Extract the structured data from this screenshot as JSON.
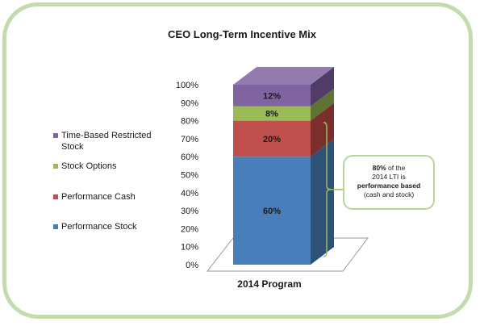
{
  "chart_data": {
    "type": "bar",
    "stacked": true,
    "three_d": true,
    "title": "CEO Long-Term Incentive Mix",
    "categories": [
      "2014 Program"
    ],
    "yticks": [
      "0%",
      "10%",
      "20%",
      "30%",
      "40%",
      "50%",
      "60%",
      "70%",
      "80%",
      "90%",
      "100%"
    ],
    "ylim": [
      0,
      100
    ],
    "series": [
      {
        "name": "Performance Stock",
        "values": [
          60
        ],
        "label": "60%",
        "color": "#4a7ebb",
        "side": "#2e5277"
      },
      {
        "name": "Performance Cash",
        "values": [
          20
        ],
        "label": "20%",
        "color": "#c0504d",
        "side": "#7a2f2c"
      },
      {
        "name": "Stock Options",
        "values": [
          8
        ],
        "label": "8%",
        "color": "#9bbb59",
        "side": "#5f7433"
      },
      {
        "name": "Time-Based Restricted Stock",
        "values": [
          12
        ],
        "label": "12%",
        "color": "#8064a2",
        "side": "#4f3c68"
      }
    ],
    "legend_order": [
      3,
      2,
      1,
      0
    ],
    "legend": [
      {
        "label": "Time-Based Restricted Stock",
        "color": "#8064a2"
      },
      {
        "label": "Stock Options",
        "color": "#9bbb59"
      },
      {
        "label": "Performance Cash",
        "color": "#c0504d"
      },
      {
        "label": "Performance Stock",
        "color": "#4a7ebb"
      }
    ],
    "legend_position": "left",
    "annotation": {
      "pct": "80%",
      "line1": " of the",
      "line2": "2014 LTI is",
      "line3": "performance based",
      "line4": "(cash and stock)"
    }
  },
  "colors": {
    "frame": "#c4dcac",
    "callout_border": "#b9d69a"
  }
}
